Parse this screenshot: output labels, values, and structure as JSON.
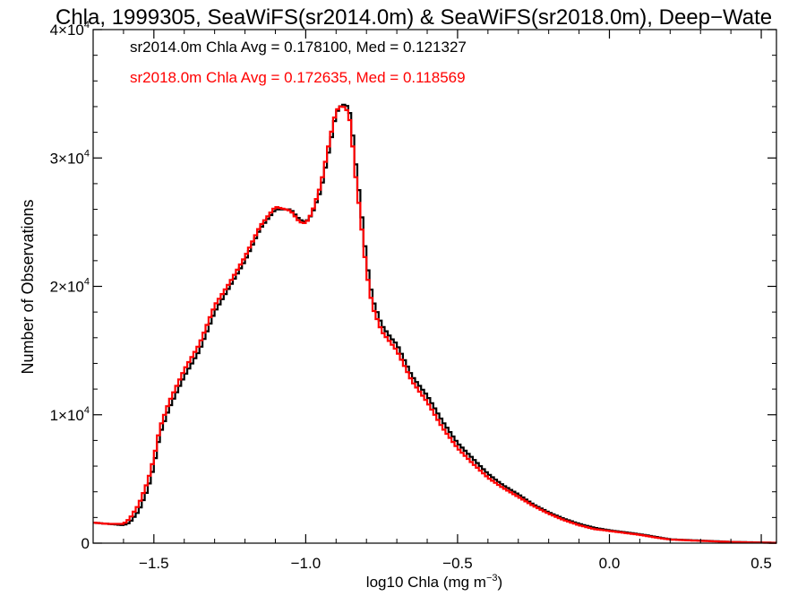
{
  "chart_data": {
    "type": "line",
    "title": "Chla, 1999305, SeaWiFS(sr2014.0m) & SeaWiFS(sr2018.0m), Deep−Wate",
    "xlabel": "log10 Chla (mg m",
    "xlabel_sup": "−3",
    "xlabel_end": ")",
    "ylabel": "Number of Observations",
    "xlim": [
      -1.7,
      0.55
    ],
    "ylim": [
      0,
      40000
    ],
    "x_ticks": [
      {
        "value": -1.5,
        "label": "−1.5"
      },
      {
        "value": -1.0,
        "label": "−1.0"
      },
      {
        "value": -0.5,
        "label": "−0.5"
      },
      {
        "value": 0.0,
        "label": "0.0"
      },
      {
        "value": 0.5,
        "label": "0.5"
      }
    ],
    "y_ticks": [
      {
        "value": 0,
        "label": "0",
        "exp": ""
      },
      {
        "value": 10000,
        "label": "1×10",
        "exp": "4"
      },
      {
        "value": 20000,
        "label": "2×10",
        "exp": "4"
      },
      {
        "value": 30000,
        "label": "3×10",
        "exp": "4"
      },
      {
        "value": 40000,
        "label": "4×10",
        "exp": "4"
      }
    ],
    "grid": false,
    "step": true,
    "annotations": [
      {
        "text": "sr2014.0m Chla Avg = 0.178100, Med = 0.121327",
        "color": "#000000"
      },
      {
        "text": "sr2018.0m Chla Avg = 0.172635, Med = 0.118569",
        "color": "#ff0000"
      }
    ],
    "series": [
      {
        "color": "#000000",
        "x": [
          -1.7,
          -1.65,
          -1.6,
          -1.58,
          -1.55,
          -1.52,
          -1.5,
          -1.48,
          -1.45,
          -1.42,
          -1.4,
          -1.35,
          -1.3,
          -1.25,
          -1.2,
          -1.15,
          -1.1,
          -1.05,
          -1.02,
          -1.0,
          -0.98,
          -0.95,
          -0.92,
          -0.9,
          -0.88,
          -0.86,
          -0.85,
          -0.84,
          -0.82,
          -0.8,
          -0.78,
          -0.75,
          -0.72,
          -0.7,
          -0.65,
          -0.6,
          -0.55,
          -0.5,
          -0.45,
          -0.4,
          -0.35,
          -0.3,
          -0.25,
          -0.2,
          -0.15,
          -0.1,
          -0.05,
          0.0,
          0.05,
          0.1,
          0.15,
          0.2,
          0.3,
          0.4,
          0.5,
          0.55
        ],
        "y": [
          1600,
          1500,
          1400,
          1600,
          2500,
          4200,
          6000,
          8500,
          10500,
          12000,
          13000,
          15000,
          18000,
          20000,
          22000,
          24500,
          26000,
          26000,
          25200,
          25000,
          25600,
          27500,
          31000,
          33500,
          34200,
          34000,
          33000,
          30500,
          26500,
          22000,
          19000,
          17000,
          16000,
          15500,
          13000,
          11500,
          9500,
          7800,
          6600,
          5400,
          4500,
          3800,
          3000,
          2400,
          1900,
          1500,
          1200,
          1000,
          850,
          700,
          500,
          300,
          200,
          100,
          50,
          30
        ]
      },
      {
        "color": "#ff0000",
        "x": [
          -1.7,
          -1.65,
          -1.6,
          -1.58,
          -1.55,
          -1.52,
          -1.5,
          -1.48,
          -1.45,
          -1.42,
          -1.4,
          -1.35,
          -1.3,
          -1.25,
          -1.2,
          -1.15,
          -1.1,
          -1.05,
          -1.02,
          -1.0,
          -0.98,
          -0.95,
          -0.92,
          -0.9,
          -0.88,
          -0.86,
          -0.85,
          -0.84,
          -0.82,
          -0.8,
          -0.78,
          -0.75,
          -0.72,
          -0.7,
          -0.65,
          -0.6,
          -0.55,
          -0.5,
          -0.45,
          -0.4,
          -0.35,
          -0.3,
          -0.25,
          -0.2,
          -0.15,
          -0.1,
          -0.05,
          0.0,
          0.05,
          0.1,
          0.15,
          0.2,
          0.3,
          0.4,
          0.5,
          0.55
        ],
        "y": [
          1600,
          1500,
          1500,
          1900,
          3000,
          4800,
          6600,
          9000,
          11000,
          12500,
          13500,
          15500,
          18500,
          20300,
          22300,
          24700,
          26200,
          25900,
          25000,
          24900,
          25700,
          27900,
          31500,
          33700,
          34100,
          33600,
          32300,
          29500,
          25500,
          21200,
          18400,
          16500,
          15600,
          15000,
          12600,
          11000,
          9000,
          7400,
          6200,
          5100,
          4300,
          3600,
          2900,
          2300,
          1800,
          1400,
          1100,
          950,
          800,
          650,
          450,
          280,
          180,
          90,
          40,
          25
        ]
      }
    ]
  }
}
